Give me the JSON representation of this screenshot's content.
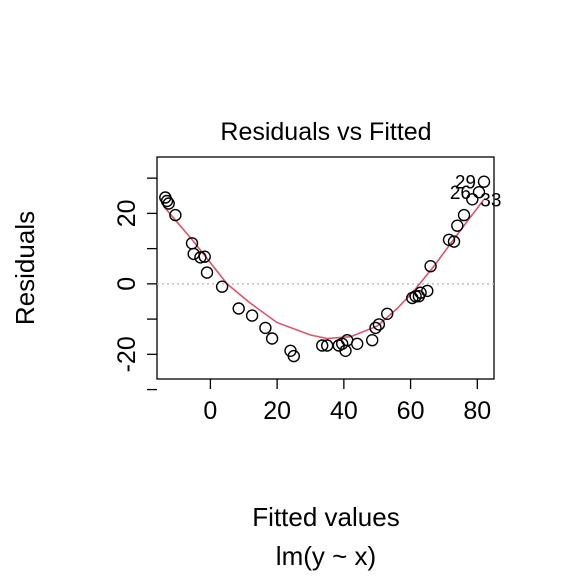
{
  "chart_data": {
    "type": "scatter",
    "title": "Residuals vs Fitted",
    "xlabel": "Fitted values",
    "sublabel": "lm(y ~ x)",
    "ylabel": "Residuals",
    "xlim": [
      -16,
      85
    ],
    "ylim": [
      -27,
      36
    ],
    "xticks": [
      0,
      20,
      40,
      60,
      80
    ],
    "yticks": [
      -20,
      0,
      20
    ],
    "yminor": [
      -30,
      -10,
      10,
      30
    ],
    "zero_line": 0,
    "points": [
      {
        "x": -13.5,
        "y": 24.5
      },
      {
        "x": -13.0,
        "y": 23.5
      },
      {
        "x": -12.5,
        "y": 22.8
      },
      {
        "x": -10.5,
        "y": 19.5
      },
      {
        "x": -5.5,
        "y": 11.5
      },
      {
        "x": -5.0,
        "y": 8.5
      },
      {
        "x": -3.0,
        "y": 7.5
      },
      {
        "x": -1.7,
        "y": 7.7
      },
      {
        "x": -1.0,
        "y": 3.2
      },
      {
        "x": 3.5,
        "y": -0.8
      },
      {
        "x": 8.5,
        "y": -7.0
      },
      {
        "x": 12.5,
        "y": -9.0
      },
      {
        "x": 16.5,
        "y": -12.5
      },
      {
        "x": 18.5,
        "y": -15.5
      },
      {
        "x": 24.0,
        "y": -19.0
      },
      {
        "x": 25.0,
        "y": -20.5
      },
      {
        "x": 33.5,
        "y": -17.5
      },
      {
        "x": 35.0,
        "y": -17.5
      },
      {
        "x": 38.5,
        "y": -17.5
      },
      {
        "x": 39.5,
        "y": -17.0
      },
      {
        "x": 40.5,
        "y": -19.0
      },
      {
        "x": 41.0,
        "y": -16.0
      },
      {
        "x": 44.0,
        "y": -17.0
      },
      {
        "x": 48.5,
        "y": -16.0
      },
      {
        "x": 49.5,
        "y": -12.5
      },
      {
        "x": 50.5,
        "y": -11.5
      },
      {
        "x": 53.0,
        "y": -8.5
      },
      {
        "x": 60.5,
        "y": -4.0
      },
      {
        "x": 61.5,
        "y": -3.5
      },
      {
        "x": 62.5,
        "y": -3.5
      },
      {
        "x": 63.0,
        "y": -2.5
      },
      {
        "x": 65.0,
        "y": -2.0
      },
      {
        "x": 66.0,
        "y": 5.0
      },
      {
        "x": 71.5,
        "y": 12.5
      },
      {
        "x": 73.0,
        "y": 12.0
      },
      {
        "x": 74.0,
        "y": 16.5
      },
      {
        "x": 76.0,
        "y": 19.5
      },
      {
        "x": 78.5,
        "y": 24.0
      },
      {
        "x": 80.5,
        "y": 26.0
      },
      {
        "x": 82.0,
        "y": 29.0
      }
    ],
    "labels": [
      {
        "text": "29",
        "x": 82.0,
        "y": 29.0
      },
      {
        "text": "26",
        "x": 80.5,
        "y": 26.0
      },
      {
        "text": "33",
        "x": 78.5,
        "y": 24.0
      }
    ],
    "smooth": [
      {
        "x": -14,
        "y": 22
      },
      {
        "x": -5,
        "y": 12
      },
      {
        "x": 5,
        "y": 0
      },
      {
        "x": 12,
        "y": -5.5
      },
      {
        "x": 20,
        "y": -11
      },
      {
        "x": 30,
        "y": -14.5
      },
      {
        "x": 35,
        "y": -15.5
      },
      {
        "x": 42,
        "y": -15
      },
      {
        "x": 50,
        "y": -12
      },
      {
        "x": 56,
        "y": -7
      },
      {
        "x": 61,
        "y": -2
      },
      {
        "x": 67,
        "y": 5
      },
      {
        "x": 74,
        "y": 14
      },
      {
        "x": 82,
        "y": 24
      }
    ],
    "colors": {
      "points": "#000000",
      "smooth": "#DF536B",
      "zero_line": "#BEBEBE"
    }
  }
}
